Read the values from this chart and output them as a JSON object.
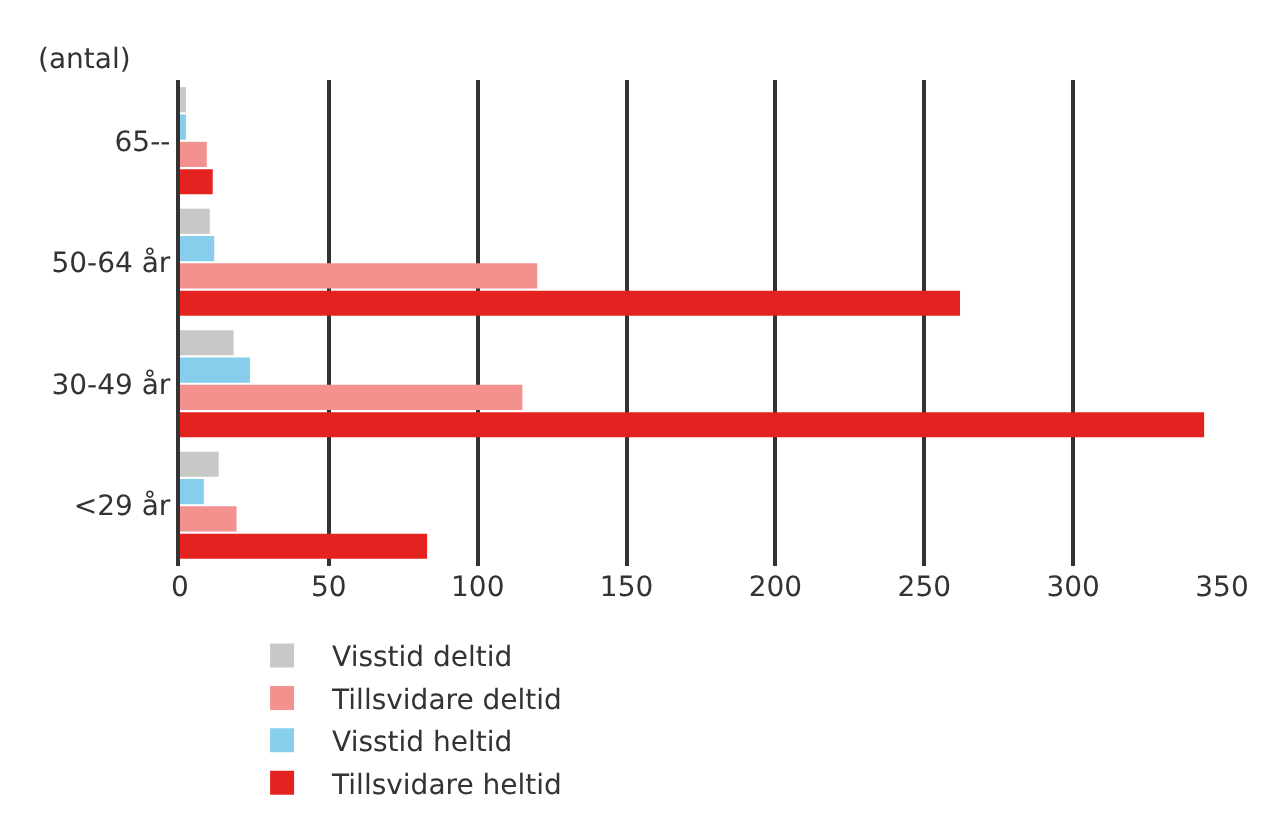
{
  "chart_data": {
    "type": "bar",
    "orientation": "horizontal",
    "categories": [
      "65--",
      "50-64 år",
      "30-49 år",
      "<29 år"
    ],
    "series": [
      {
        "name": "Visstid deltid",
        "color": "#c8c8c6",
        "values": [
          2,
          10,
          18,
          13
        ]
      },
      {
        "name": "Visstid heltid",
        "color": "#87ceed",
        "values": [
          2,
          11.5,
          23.5,
          8
        ]
      },
      {
        "name": "Tillsvidare deltid",
        "color": "#f2918e",
        "values": [
          9,
          120,
          115,
          19
        ]
      },
      {
        "name": "Tillsvidare heltid",
        "color": "#e42320",
        "values": [
          11,
          262,
          344,
          83
        ]
      }
    ],
    "xlim": [
      0,
      350
    ],
    "xticks": [
      0,
      50,
      100,
      150,
      200,
      250,
      300,
      350
    ],
    "grid": "x",
    "legend": "bottom",
    "annotations": [
      "(antal)"
    ]
  }
}
